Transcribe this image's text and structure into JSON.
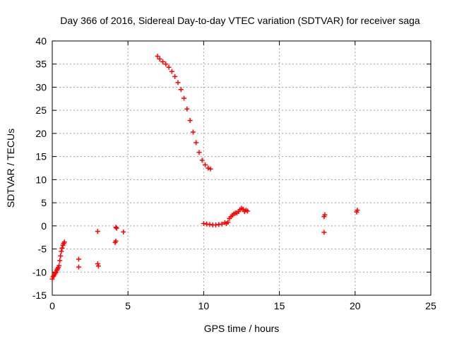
{
  "chart_data": {
    "type": "scatter",
    "title": "Day 366 of 2016, Sidereal Day-to-day VTEC variation (SDTVAR) for receiver saga",
    "xlabel": "GPS time / hours",
    "ylabel": "SDTVAR / TECUs",
    "xlim": [
      0,
      25
    ],
    "ylim": [
      -15,
      40
    ],
    "xticks": [
      0,
      5,
      10,
      15,
      20,
      25
    ],
    "yticks": [
      -15,
      -10,
      -5,
      0,
      5,
      10,
      15,
      20,
      25,
      30,
      35,
      40
    ],
    "grid": true,
    "marker": "+",
    "color": "#ff0000",
    "series": [
      {
        "name": "SDTVAR",
        "points": [
          [
            0.0,
            -11.5
          ],
          [
            0.05,
            -11.0
          ],
          [
            0.1,
            -10.8
          ],
          [
            0.15,
            -10.5
          ],
          [
            0.2,
            -10.2
          ],
          [
            0.25,
            -10.0
          ],
          [
            0.3,
            -9.6
          ],
          [
            0.35,
            -9.3
          ],
          [
            0.4,
            -9.0
          ],
          [
            0.45,
            -8.6
          ],
          [
            0.5,
            -7.5
          ],
          [
            0.55,
            -6.5
          ],
          [
            0.6,
            -5.5
          ],
          [
            0.65,
            -4.8
          ],
          [
            0.7,
            -4.2
          ],
          [
            0.75,
            -3.8
          ],
          [
            0.8,
            -3.5
          ],
          [
            1.75,
            -7.2
          ],
          [
            1.75,
            -8.9
          ],
          [
            3.0,
            -1.2
          ],
          [
            3.0,
            -8.2
          ],
          [
            3.05,
            -8.7
          ],
          [
            4.2,
            -0.3
          ],
          [
            4.25,
            -0.5
          ],
          [
            4.15,
            -3.6
          ],
          [
            4.2,
            -3.3
          ],
          [
            4.7,
            -1.3
          ],
          [
            6.95,
            36.7
          ],
          [
            7.1,
            36.1
          ],
          [
            7.3,
            35.5
          ],
          [
            7.5,
            35.0
          ],
          [
            7.7,
            34.3
          ],
          [
            7.9,
            33.4
          ],
          [
            8.1,
            32.3
          ],
          [
            8.3,
            31.0
          ],
          [
            8.5,
            29.5
          ],
          [
            8.7,
            27.6
          ],
          [
            8.9,
            25.3
          ],
          [
            9.1,
            22.8
          ],
          [
            9.3,
            20.3
          ],
          [
            9.5,
            18.0
          ],
          [
            9.7,
            15.9
          ],
          [
            9.9,
            14.2
          ],
          [
            10.1,
            13.2
          ],
          [
            10.3,
            12.5
          ],
          [
            10.45,
            12.3
          ],
          [
            10.0,
            0.5
          ],
          [
            10.2,
            0.4
          ],
          [
            10.4,
            0.3
          ],
          [
            10.6,
            0.2
          ],
          [
            10.8,
            0.2
          ],
          [
            11.0,
            0.3
          ],
          [
            11.2,
            0.4
          ],
          [
            11.4,
            0.7
          ],
          [
            11.5,
            0.5
          ],
          [
            11.6,
            0.8
          ],
          [
            11.7,
            1.6
          ],
          [
            11.8,
            2.0
          ],
          [
            11.9,
            2.3
          ],
          [
            12.0,
            2.6
          ],
          [
            12.1,
            2.8
          ],
          [
            12.2,
            2.8
          ],
          [
            12.3,
            3.1
          ],
          [
            12.4,
            3.5
          ],
          [
            12.5,
            3.8
          ],
          [
            12.6,
            3.6
          ],
          [
            12.7,
            3.1
          ],
          [
            12.8,
            3.4
          ],
          [
            12.9,
            3.2
          ],
          [
            17.95,
            2.0
          ],
          [
            18.0,
            2.4
          ],
          [
            17.95,
            -1.4
          ],
          [
            20.1,
            3.0
          ],
          [
            20.15,
            3.4
          ]
        ]
      }
    ]
  }
}
